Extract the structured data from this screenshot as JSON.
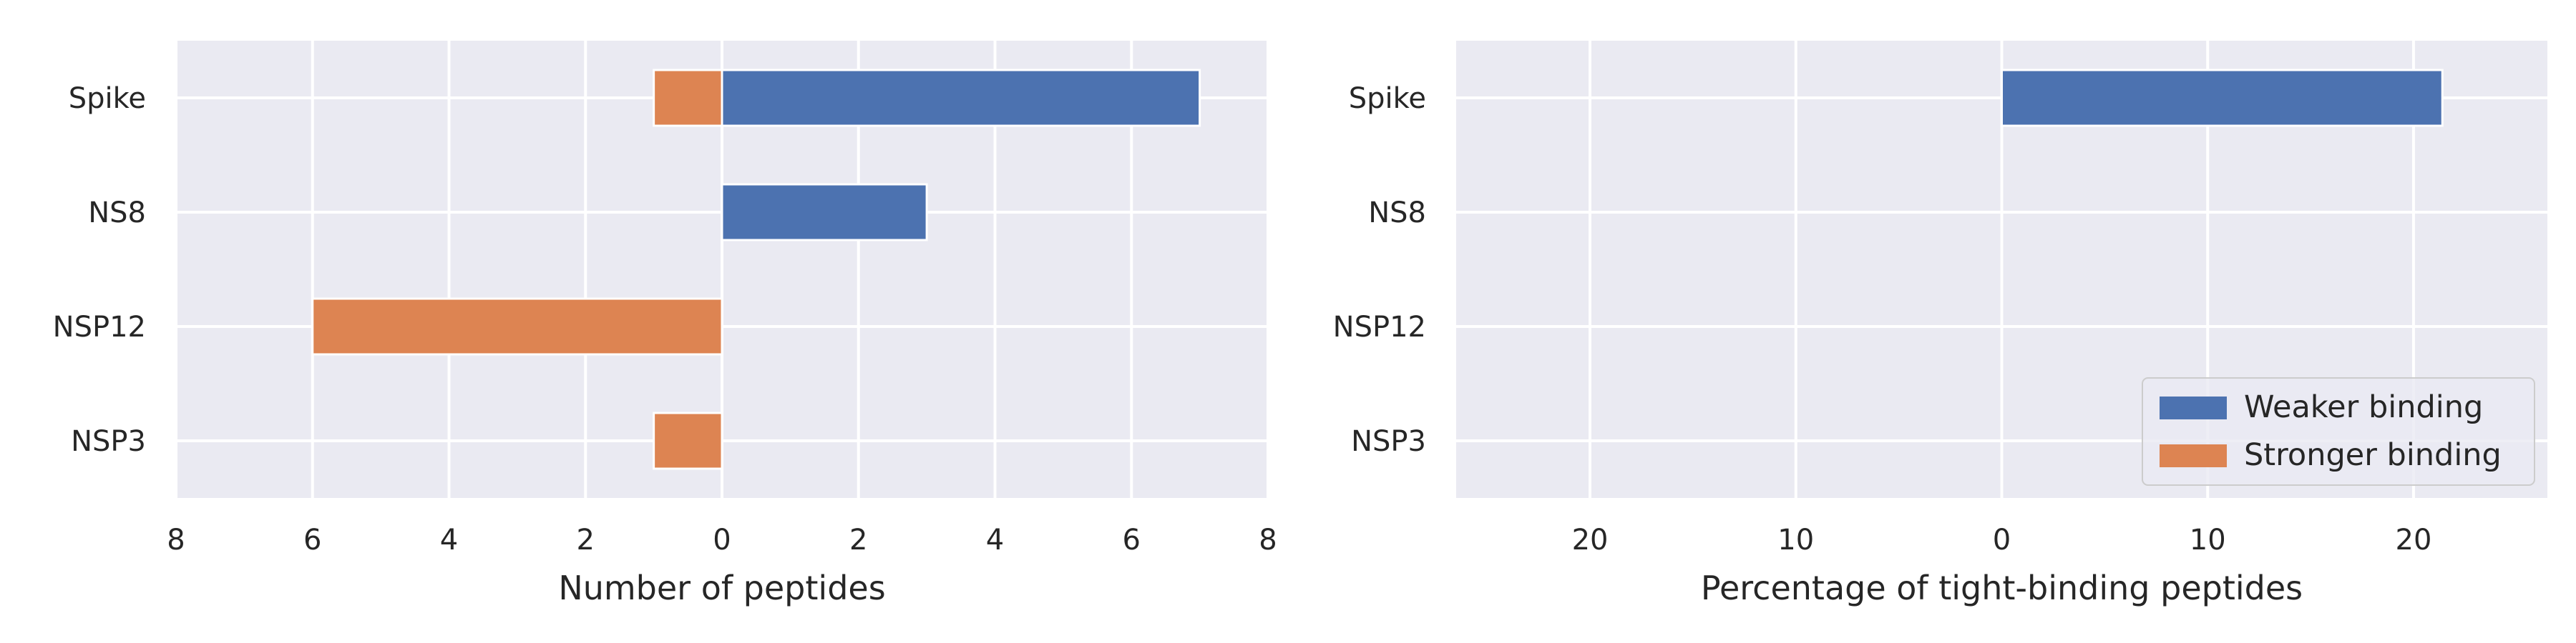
{
  "colors": {
    "weaker": "#4c72b0",
    "stronger": "#dd8452",
    "panel_bg": "#eaeaf2",
    "grid": "#ffffff",
    "text": "#262626"
  },
  "chart_data": [
    {
      "type": "bar",
      "orientation": "horizontal",
      "categories": [
        "Spike",
        "NS8",
        "NSP12",
        "NSP3"
      ],
      "xlabel": "Number of peptides",
      "xlim": [
        -8,
        8
      ],
      "xticks": [
        -8,
        -6,
        -4,
        -2,
        0,
        2,
        4,
        6,
        8
      ],
      "xtick_labels": [
        "8",
        "6",
        "4",
        "2",
        "0",
        "2",
        "4",
        "6",
        "8"
      ],
      "grid": true,
      "series": [
        {
          "name": "Weaker binding",
          "color_key": "weaker",
          "values": [
            7,
            3,
            0,
            0
          ]
        },
        {
          "name": "Stronger binding",
          "color_key": "stronger",
          "values": [
            -1,
            0,
            -6,
            -1
          ]
        }
      ]
    },
    {
      "type": "bar",
      "orientation": "horizontal",
      "categories": [
        "Spike",
        "NS8",
        "NSP12",
        "NSP3"
      ],
      "xlabel": "Percentage of tight-binding peptides",
      "xlim": [
        -26.5,
        26.5
      ],
      "xticks": [
        -20,
        -10,
        0,
        10,
        20
      ],
      "xtick_labels": [
        "20",
        "10",
        "0",
        "10",
        "20"
      ],
      "grid": true,
      "legend": {
        "placement": "lower-right",
        "entries": [
          {
            "label": "Weaker binding",
            "color_key": "weaker"
          },
          {
            "label": "Stronger binding",
            "color_key": "stronger"
          }
        ]
      },
      "series": [
        {
          "name": "Weaker binding",
          "color_key": "weaker",
          "values": [
            21.4,
            0,
            0,
            0
          ]
        },
        {
          "name": "Stronger binding",
          "color_key": "stronger",
          "values": [
            0,
            0,
            0,
            0
          ]
        }
      ]
    }
  ]
}
